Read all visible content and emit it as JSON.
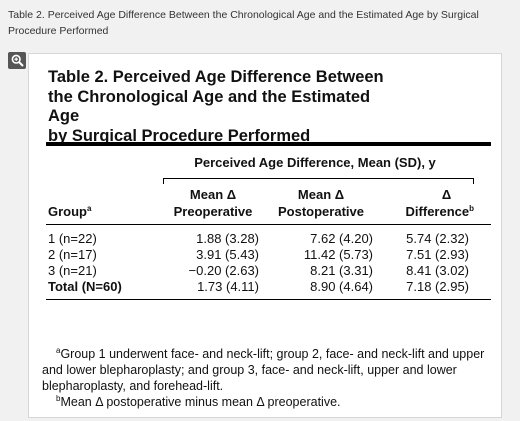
{
  "caption": "Table 2. Perceived Age Difference Between the Chronological Age and the Estimated Age by Surgical Procedure Performed",
  "zoom_icon": "magnifier-plus-icon",
  "table": {
    "title_lines": [
      "Table 2. Perceived Age Difference Between",
      "the Chronological Age and the Estimated Age",
      "by Surgical Procedure Performed"
    ],
    "spanner": "Perceived Age Difference, Mean (SD), y",
    "headers": {
      "group": "Group",
      "group_sup": "a",
      "pre_line1": "Mean Δ",
      "pre_line2": "Preoperative",
      "post_line1": "Mean Δ",
      "post_line2": "Postoperative",
      "diff_line1": "Δ",
      "diff_line2": "Difference",
      "diff_sup": "b"
    },
    "rows": [
      {
        "group": "1 (n=22)",
        "pre": "1.88 (3.28)",
        "post": "7.62 (4.20)",
        "diff": "5.74 (2.32)",
        "bold": false
      },
      {
        "group": "2 (n=17)",
        "pre": "3.91 (5.43)",
        "post": "11.42 (5.73)",
        "diff": "7.51 (2.93)",
        "bold": false
      },
      {
        "group": "3 (n=21)",
        "pre": "−0.20 (2.63)",
        "post": "8.21 (3.31)",
        "diff": "8.41 (3.02)",
        "bold": false
      },
      {
        "group": "Total (N=60)",
        "pre": "1.73 (4.11)",
        "post": "8.90 (4.64)",
        "diff": "7.18 (2.95)",
        "bold": true
      }
    ],
    "footnotes": {
      "a_mark": "a",
      "a_text": "Group 1 underwent face- and neck-lift; group 2, face- and neck-lift and upper and lower blepharoplasty; and group 3, face- and neck-lift, upper and lower blepharoplasty, and forehead-lift.",
      "b_mark": "b",
      "b_text": "Mean Δ postoperative minus mean Δ preoperative."
    }
  }
}
